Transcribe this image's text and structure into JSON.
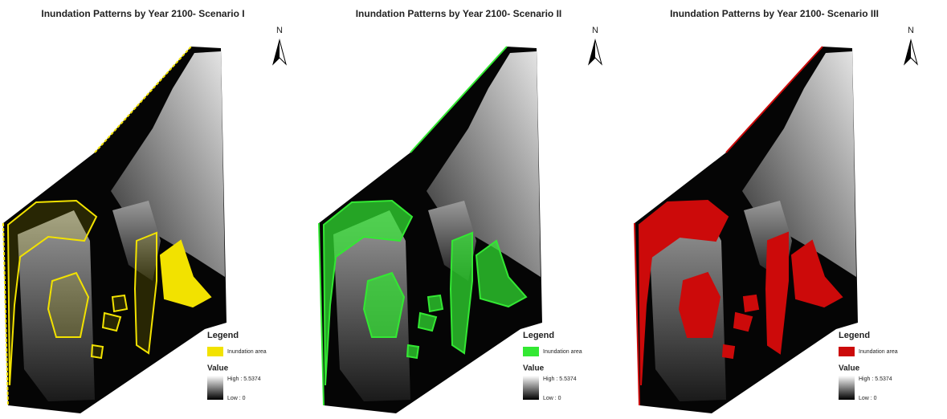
{
  "panels": [
    {
      "title": "Inundation Patterns by Year 2100- Scenario I",
      "north": "N",
      "color": "#f2e200",
      "legend": {
        "title": "Legend",
        "item": "Inundation area",
        "value_title": "Value",
        "high": "High : 5.5374",
        "low": "Low : 0"
      }
    },
    {
      "title": "Inundation Patterns by Year 2100- Scenario II",
      "north": "N",
      "color": "#33e833",
      "legend": {
        "title": "Legend",
        "item": "Inundation area",
        "value_title": "Value",
        "high": "High : 5.5374",
        "low": "Low : 0"
      }
    },
    {
      "title": "Inundation Patterns by Year 2100- Scenario III",
      "north": "N",
      "color": "#cc0a0a",
      "legend": {
        "title": "Legend",
        "item": "Inundation area",
        "value_title": "Value",
        "high": "High : 5.5374",
        "low": "Low : 0"
      }
    }
  ]
}
